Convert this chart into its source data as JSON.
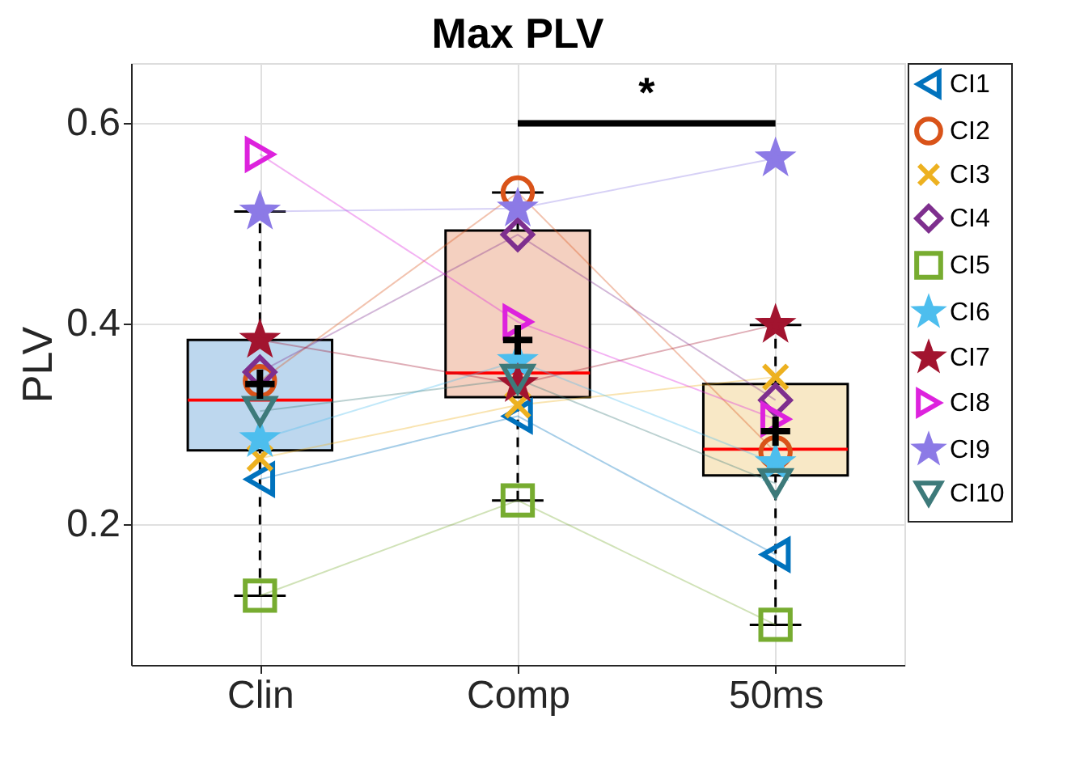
{
  "chart_data": {
    "type": "box",
    "title": "Max PLV",
    "ylabel": "PLV",
    "categories": [
      "Clin",
      "Comp",
      "50ms"
    ],
    "ylim": [
      0.06,
      0.66
    ],
    "yticks": [
      0.2,
      0.4,
      0.6
    ],
    "grid": true,
    "legend": "top right",
    "colors": [
      "#bdd7ee",
      "#f4d0c0",
      "#f8e8c6"
    ],
    "boxes": [
      {
        "low": 0.129,
        "q1": 0.274,
        "median": 0.324,
        "q3": 0.384,
        "high": 0.512,
        "mean": 0.34
      },
      {
        "low": 0.224,
        "q1": 0.327,
        "median": 0.351,
        "q3": 0.493,
        "high": 0.531,
        "mean": 0.384
      },
      {
        "low": 0.1,
        "q1": 0.249,
        "median": 0.275,
        "q3": 0.34,
        "high": 0.399,
        "mean": 0.293
      }
    ],
    "annotations": [
      "*"
    ],
    "series": [
      {
        "name": "CI1",
        "type": "line",
        "marker": "triangle-left",
        "color": "#0072bd",
        "values": [
          0.245,
          0.308,
          0.17
        ]
      },
      {
        "name": "CI2",
        "type": "line",
        "marker": "circle",
        "color": "#d95319",
        "values": [
          0.343,
          0.531,
          0.272
        ]
      },
      {
        "name": "CI3",
        "type": "line",
        "marker": "cross",
        "color": "#edb120",
        "values": [
          0.266,
          0.319,
          0.347
        ]
      },
      {
        "name": "CI4",
        "type": "line",
        "marker": "diamond",
        "color": "#7e2f8e",
        "values": [
          0.352,
          0.489,
          0.324
        ]
      },
      {
        "name": "CI5",
        "type": "line",
        "marker": "square",
        "color": "#77ac30",
        "values": [
          0.129,
          0.224,
          0.1
        ]
      },
      {
        "name": "CI6",
        "type": "line",
        "marker": "star",
        "color": "#4dbeee",
        "values": [
          0.285,
          0.363,
          0.261
        ]
      },
      {
        "name": "CI7",
        "type": "line",
        "marker": "star",
        "color": "#a2142f",
        "values": [
          0.384,
          0.34,
          0.399
        ]
      },
      {
        "name": "CI8",
        "type": "line",
        "marker": "triangle-right",
        "color": "#dd22dd",
        "values": [
          0.569,
          0.402,
          0.305
        ]
      },
      {
        "name": "CI9",
        "type": "line",
        "marker": "star",
        "color": "#8c7ae6",
        "values": [
          0.512,
          0.515,
          0.565
        ]
      },
      {
        "name": "CI10",
        "type": "line",
        "marker": "triangle-down",
        "color": "#3d7a7a",
        "values": [
          0.313,
          0.345,
          0.241
        ]
      }
    ]
  }
}
